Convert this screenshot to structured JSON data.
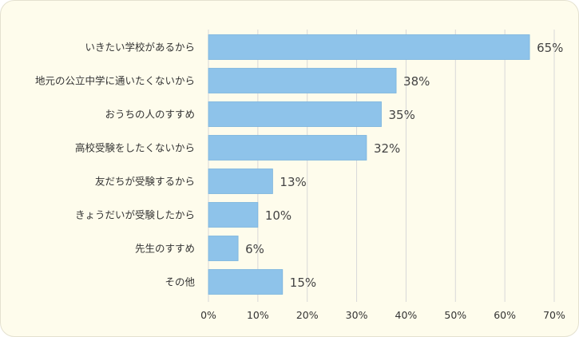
{
  "chart_data": {
    "type": "bar",
    "orientation": "horizontal",
    "title": "",
    "xlabel": "",
    "ylabel": "",
    "categories": [
      "いきたい学校があるから",
      "地元の公立中学に通いたくないから",
      "おうちの人のすすめ",
      "高校受験をしたくないから",
      "友だちが受験するから",
      "きょうだいが受験したから",
      "先生のすすめ",
      "その他"
    ],
    "values": [
      65,
      38,
      35,
      32,
      13,
      10,
      6,
      15
    ],
    "value_labels": [
      "65%",
      "38%",
      "35%",
      "32%",
      "13%",
      "10%",
      "6%",
      "15%"
    ],
    "xlim": [
      0,
      70
    ],
    "x_ticks": [
      0,
      10,
      20,
      30,
      40,
      50,
      60,
      70
    ],
    "x_tick_labels": [
      "0%",
      "10%",
      "20%",
      "30%",
      "40%",
      "50%",
      "60%",
      "70%"
    ],
    "grid": true,
    "legend": "none",
    "colors": {
      "bar": "#8ec3ea",
      "bar_stroke": "#7ab3de",
      "grid": "#d8d8d8",
      "panel_background": "#fefcec"
    }
  }
}
